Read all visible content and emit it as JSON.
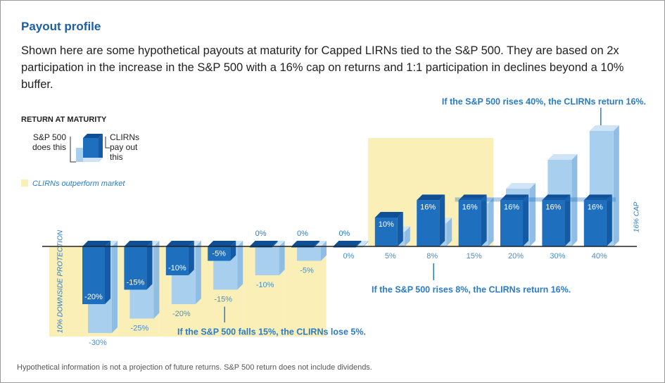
{
  "chart_data": {
    "type": "bar",
    "title": "Payout profile",
    "subtitle": "Shown here are some hypothetical payouts at maturity for Capped LIRNs tied to the S&P 500. They are based on 2x participation in the increase in the S&P 500 with a 16% cap on returns and 1:1 participation in declines beyond a 10% buffer.",
    "legend_title": "RETURN AT MATURITY",
    "highlight_label": "CLIRNs outperform market",
    "protection_label": "10% DOWNSIDE PROTECTION",
    "cap": 16,
    "cap_label": "16% CAP",
    "ylim": [
      -30,
      40
    ],
    "series": [
      {
        "name": "S&P 500 does this",
        "color": "#a9cfee",
        "values": [
          -30,
          -25,
          -20,
          -15,
          -10,
          -5,
          0,
          5,
          8,
          15,
          20,
          30,
          40
        ],
        "value_labels": [
          "-30%",
          "-25%",
          "-20%",
          "-15%",
          "-10%",
          "-5%",
          "0%",
          "5%",
          "8%",
          "15%",
          "20%",
          "30%",
          "40%"
        ]
      },
      {
        "name": "CLIRNs pay out this",
        "color": "#1f6fbf",
        "values": [
          -20,
          -15,
          -10,
          -5,
          0,
          0,
          0,
          10,
          16,
          16,
          16,
          16,
          16
        ],
        "value_labels": [
          "-20%",
          "-15%",
          "-10%",
          "-5%",
          "0%",
          "0%",
          "0%",
          "10%",
          "16%",
          "16%",
          "16%",
          "16%",
          "16%"
        ]
      }
    ],
    "annotations": [
      "If the S&P 500 rises 40%, the CLIRNs return 16%.",
      "If the S&P 500 rises 8%, the CLIRNs return 16%.",
      "If the S&P 500 falls 15%, the CLIRNs lose 5%."
    ],
    "footnote": "Hypothetical information is not a projection of future returns. S&P 500 return does not include dividends."
  }
}
